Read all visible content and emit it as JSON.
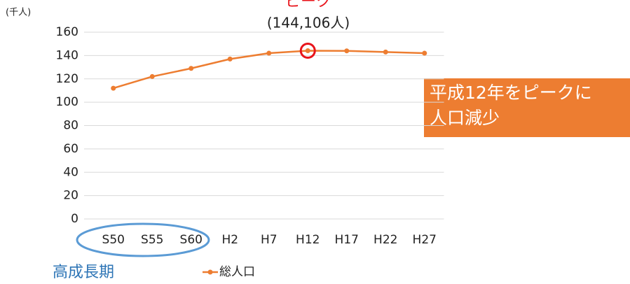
{
  "chart_data": {
    "type": "line",
    "y_unit_label": "(千人)",
    "categories": [
      "S50",
      "S55",
      "S60",
      "H2",
      "H7",
      "H12",
      "H17",
      "H22",
      "H27"
    ],
    "series": [
      {
        "name": "総人口",
        "color": "#ed7d31",
        "values": [
          112,
          122,
          129,
          137,
          142,
          144.106,
          144,
          143,
          142
        ]
      }
    ],
    "ylim": [
      0,
      160
    ],
    "yticks": [
      0,
      20,
      40,
      60,
      80,
      100,
      120,
      140,
      160
    ],
    "grid": true,
    "peak_title": "ピーク",
    "peak_label": "(144,106人)",
    "callout": [
      "平成12年をピークに",
      "人口減少"
    ],
    "period_label": "高成長期"
  }
}
